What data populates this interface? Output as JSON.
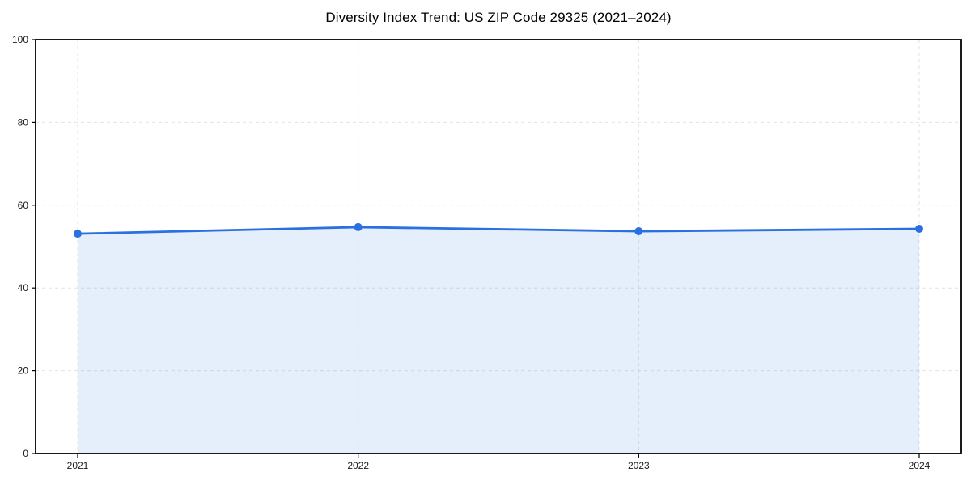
{
  "chart_data": {
    "type": "area",
    "title": "Diversity Index Trend: US ZIP Code 29325 (2021–2024)",
    "categories": [
      "2021",
      "2022",
      "2023",
      "2024"
    ],
    "series": [
      {
        "name": "Diversity Index",
        "values": [
          53.1,
          54.7,
          53.7,
          54.3
        ]
      }
    ],
    "xlabel": "",
    "ylabel": "",
    "ylim": [
      0,
      100
    ],
    "yticks": [
      0,
      20,
      40,
      60,
      80,
      100
    ],
    "grid": true,
    "grid_style": "dashed",
    "legend_position": "none",
    "colors": {
      "line": "#2a70e0",
      "marker": "#2a70e0",
      "fill": "rgba(42,112,224,0.12)",
      "grid": "#e2e2e2",
      "spine": "#000000",
      "tick": "#000000",
      "tick_label": "#1a1a1a",
      "title": "#000000",
      "background": "#ffffff"
    }
  }
}
